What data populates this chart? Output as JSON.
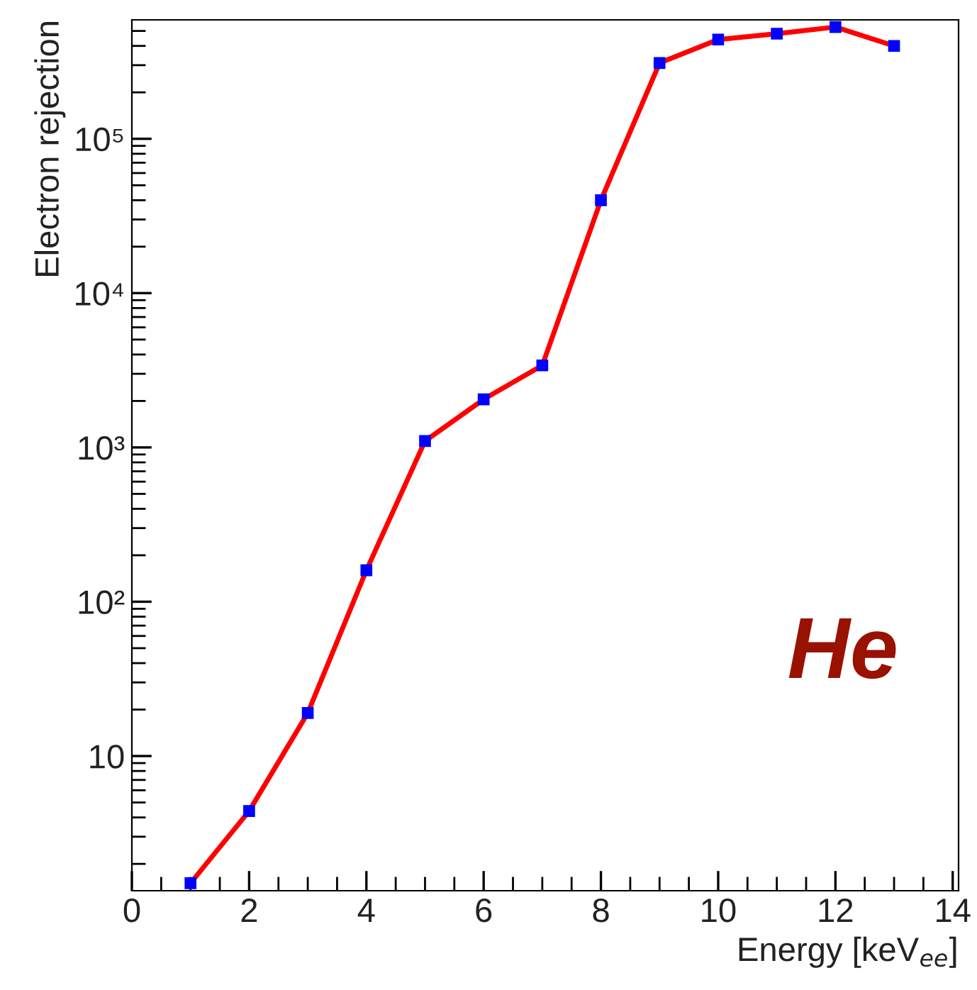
{
  "chart_data": {
    "type": "line",
    "xlabel": "Energy [keV$_{ee}$]",
    "ylabel": "Electron rejection",
    "x": [
      1,
      2,
      3,
      4,
      5,
      6,
      7,
      8,
      9,
      10,
      11,
      12,
      13
    ],
    "series": [
      {
        "color": "#ff0000",
        "values": [
          1.5,
          4.4,
          19,
          160,
          1100,
          2050,
          3400,
          40000,
          310000,
          440000,
          480000,
          530000,
          400000
        ]
      }
    ],
    "marker": "square",
    "line_style": "solid",
    "log": "y",
    "grid": false,
    "legend": false,
    "xlim": [
      0,
      14.1
    ],
    "xticks": [
      0,
      2,
      4,
      6,
      8,
      10,
      12,
      14
    ],
    "ylim": [
      1.34,
      590000
    ],
    "yticks": [
      10,
      {
        "value": 100,
        "label": "10²"
      },
      {
        "value": 1000,
        "label": "10³"
      },
      {
        "value": 10000,
        "label": "10⁴"
      },
      {
        "value": 100000,
        "label": "10⁵"
      }
    ],
    "annotations": [
      "He"
    ]
  }
}
